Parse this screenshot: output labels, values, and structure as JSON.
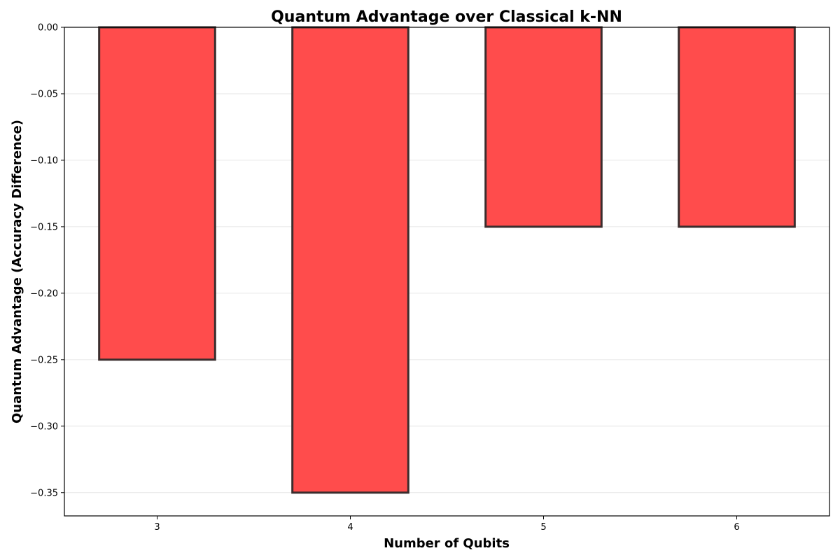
{
  "chart_data": {
    "type": "bar",
    "title": "Quantum Advantage over Classical k-NN",
    "xlabel": "Number of Qubits",
    "ylabel": "Quantum Advantage (Accuracy Difference)",
    "categories": [
      "3",
      "4",
      "5",
      "6"
    ],
    "values": [
      -0.25,
      -0.35,
      -0.15,
      -0.15
    ],
    "ylim": [
      -0.3675,
      0.0
    ],
    "yticks": [
      0.0,
      -0.05,
      -0.1,
      -0.15,
      -0.2,
      -0.25,
      -0.3,
      -0.35
    ],
    "ytick_labels": [
      "0.00",
      "−0.05",
      "−0.10",
      "−0.15",
      "−0.20",
      "−0.25",
      "−0.30",
      "−0.35"
    ],
    "grid": true,
    "bar_color": "#ff4c4c",
    "edge_color": "#3b2d2d"
  }
}
